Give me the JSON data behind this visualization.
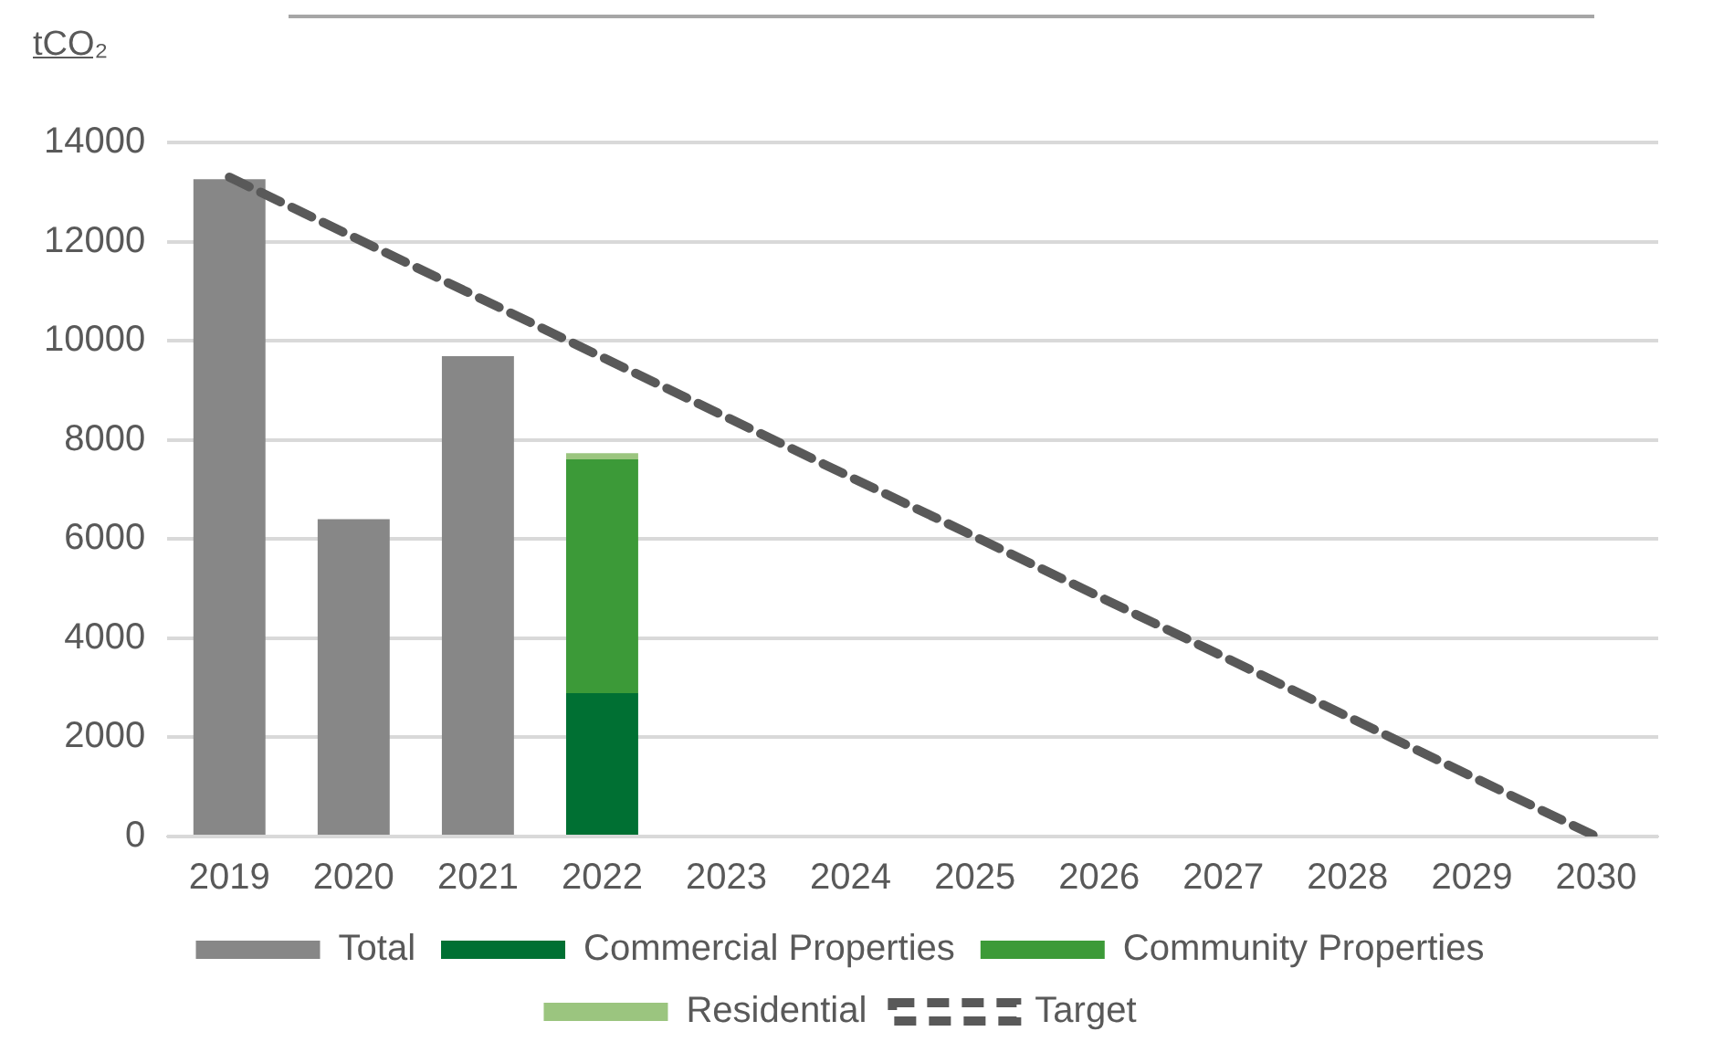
{
  "chart_data": {
    "type": "bar",
    "ylabel": "tCO₂",
    "categories": [
      "2019",
      "2020",
      "2021",
      "2022",
      "2023",
      "2024",
      "2025",
      "2026",
      "2027",
      "2028",
      "2029",
      "2030"
    ],
    "series": [
      {
        "name": "Total",
        "color": "#878787",
        "values": [
          13260,
          6400,
          9690,
          null,
          null,
          null,
          null,
          null,
          null,
          null,
          null,
          null
        ]
      },
      {
        "name": "Commercial Properties",
        "color": "#007033",
        "values": [
          null,
          null,
          null,
          2890,
          null,
          null,
          null,
          null,
          null,
          null,
          null,
          null
        ]
      },
      {
        "name": "Community Properties",
        "color": "#3c9a38",
        "values": [
          null,
          null,
          null,
          4720,
          null,
          null,
          null,
          null,
          null,
          null,
          null,
          null
        ]
      },
      {
        "name": "Residential",
        "color": "#9bc57f",
        "values": [
          null,
          null,
          null,
          120,
          null,
          null,
          null,
          null,
          null,
          null,
          null,
          null
        ]
      },
      {
        "name": "Target",
        "type": "line",
        "color": "#595959",
        "line_style": "dashed",
        "marker": "none",
        "values": [
          13300,
          12090,
          10880,
          9670,
          8460,
          7250,
          6050,
          4840,
          3630,
          2420,
          1210,
          0
        ]
      }
    ],
    "stacked": true,
    "ylim": [
      0,
      14000
    ],
    "yticks": [
      0,
      2000,
      4000,
      6000,
      8000,
      10000,
      12000,
      14000
    ],
    "grid": "y",
    "legend": "bottom"
  }
}
